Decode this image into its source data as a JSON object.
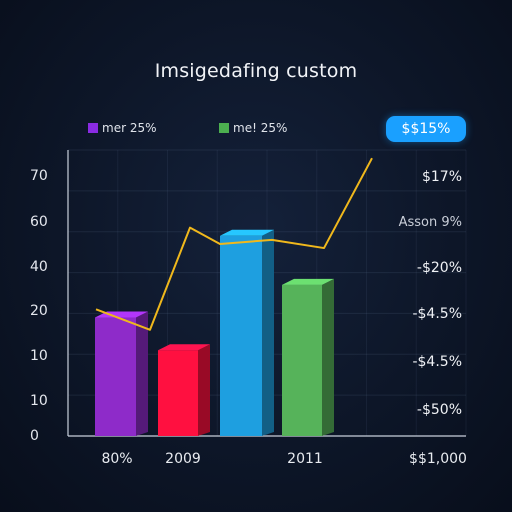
{
  "chart_data": {
    "type": "bar",
    "title": "Imsigedafing custom",
    "legend": [
      {
        "label": "mer 25%",
        "color": "#8a2be2"
      },
      {
        "label": "me! 25%",
        "color": "#4caf50"
      }
    ],
    "badge": "$$15%",
    "y_tick_labels": [
      "70",
      "60",
      "40",
      "20",
      "10",
      "10",
      "0"
    ],
    "x_tick_labels": [
      "80%",
      "2009",
      "2011",
      "$$1,000"
    ],
    "right_labels": [
      "$17%",
      "Asson 9%",
      "-$20%",
      "-$4.5%",
      "-$4.5%",
      "-$50%"
    ],
    "bars": [
      {
        "value": 29,
        "color": "#8e2bc9"
      },
      {
        "value": 21,
        "color": "#ff1040"
      },
      {
        "value": 49,
        "color": "#1e9fe0"
      },
      {
        "value": 37,
        "color": "#56b35a"
      }
    ],
    "line": {
      "color": "#f0b81c",
      "values": [
        31,
        26,
        51,
        47,
        48,
        46,
        68
      ]
    },
    "ylim": [
      0,
      70
    ],
    "grid": true
  }
}
